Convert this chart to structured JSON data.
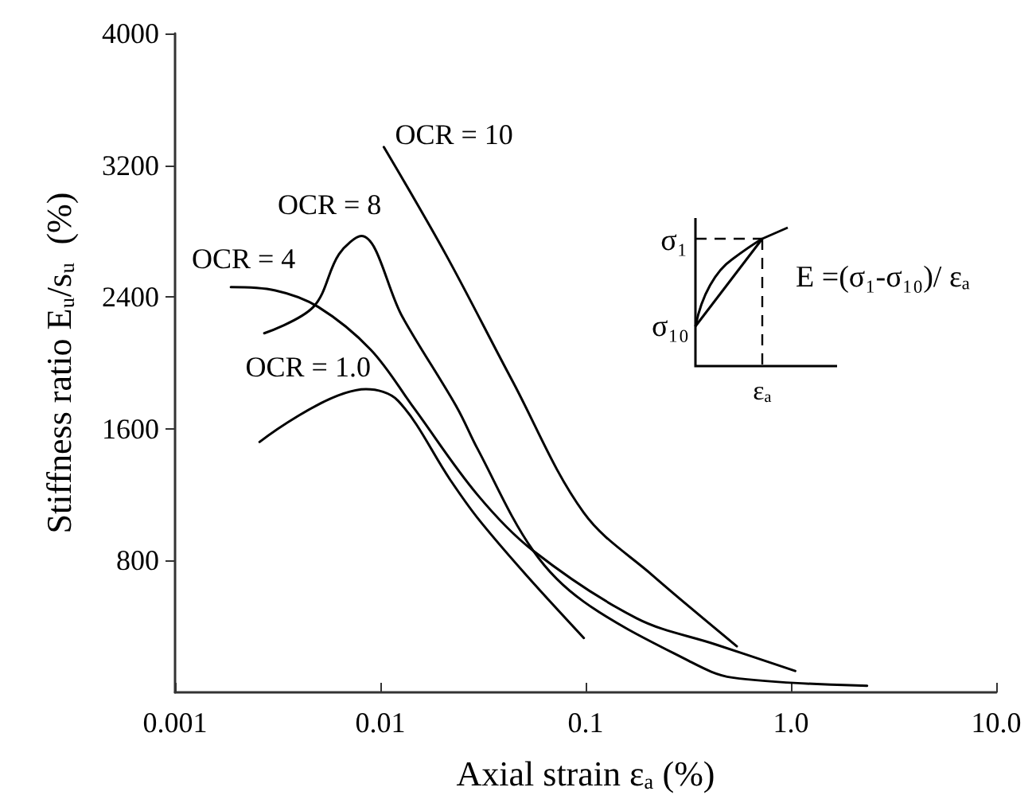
{
  "chart_data": {
    "type": "line",
    "xlabel": "Axial strain εₐ (%)",
    "ylabel": "Stiffness ratio Eᵤ/sᵤ  (%)",
    "log": "x",
    "xlim": [
      0.001,
      10
    ],
    "xticks": [
      0.001,
      0.01,
      0.1,
      {
        "value": 1,
        "label": "1.0"
      },
      {
        "value": 10,
        "label": "10.0"
      }
    ],
    "ylim": [
      0,
      4000
    ],
    "yticks": [
      800,
      1600,
      2400,
      3200,
      4000
    ],
    "grid": false,
    "legend": false,
    "marker": "none",
    "line_style": "solid",
    "series": [
      {
        "name": "OCR = 10",
        "color": "#000000",
        "x": [
          0.0104,
          0.0208,
          0.044,
          0.098,
          0.212,
          0.545
        ],
        "values": [
          3310,
          2660,
          1890,
          1090,
          710,
          280
        ]
      },
      {
        "name": "OCR = 8",
        "color": "#000000",
        "x": [
          0.00272,
          0.00472,
          0.00629,
          0.00808,
          0.0128,
          0.0236,
          0.0297,
          0.0555,
          0.098,
          0.319,
          0.517,
          2.35
        ],
        "values": [
          2180,
          2340,
          2660,
          2770,
          2280,
          1730,
          1480,
          860,
          550,
          190,
          90,
          40
        ]
      },
      {
        "name": "OCR = 4",
        "color": "#000000",
        "x": [
          0.00187,
          0.00308,
          0.00498,
          0.00898,
          0.0145,
          0.0297,
          0.0555,
          0.177,
          0.432,
          1.05
        ],
        "values": [
          2460,
          2440,
          2340,
          2080,
          1730,
          1200,
          860,
          450,
          290,
          130
        ]
      },
      {
        "name": "OCR = 1.0",
        "color": "#000000",
        "x": [
          0.00258,
          0.00851,
          0.0122,
          0.0219,
          0.0297,
          0.0507,
          0.098
        ],
        "values": [
          1520,
          1840,
          1770,
          1290,
          1060,
          720,
          330
        ]
      }
    ],
    "annotations": [
      "σ₁",
      "σ₁₀",
      "εₐ",
      "E =(σ₁-σ₁₀)/ εₐ"
    ]
  }
}
